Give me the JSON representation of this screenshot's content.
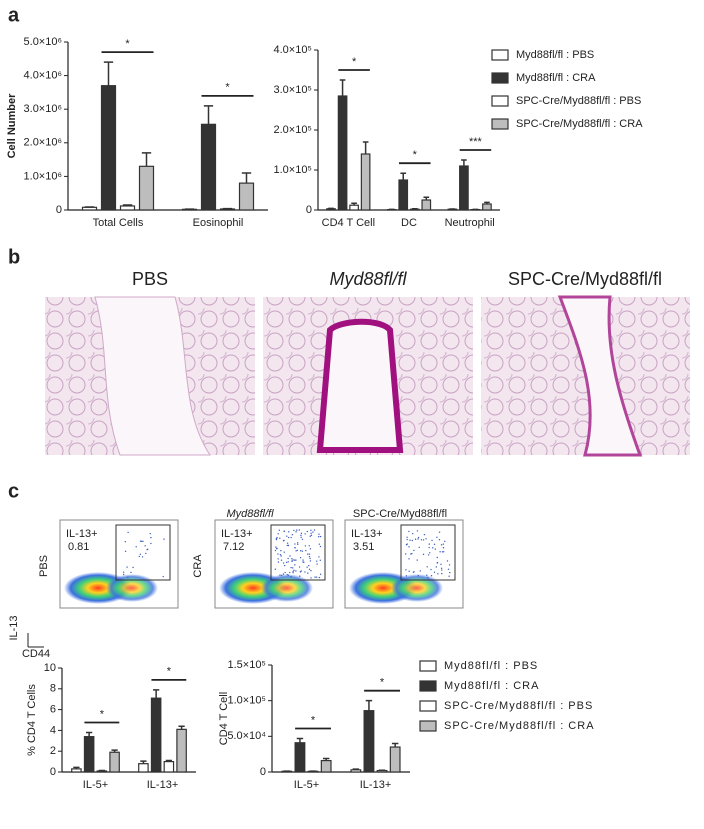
{
  "panel_labels": [
    "a",
    "b",
    "c"
  ],
  "chart_data": [
    {
      "type": "bar",
      "ylabel": "Cell Number",
      "categories": [
        "Total Cells",
        "Eosinophil"
      ],
      "ylim": [
        0,
        5000000
      ],
      "yticks": [
        0,
        {
          "value": 1000000,
          "label": "1.0×10⁶"
        },
        {
          "value": 2000000,
          "label": "2.0×10⁶"
        },
        {
          "value": 3000000,
          "label": "3.0×10⁶"
        },
        {
          "value": 4000000,
          "label": "4.0×10⁶"
        },
        {
          "value": 5000000,
          "label": "5.0×10⁶"
        }
      ],
      "series": [
        {
          "color": "#ffffff",
          "values": [
            80000,
            20000
          ],
          "errors": [
            10000,
            5000
          ]
        },
        {
          "color": "#333333",
          "values": [
            3700000,
            2550000
          ],
          "errors": [
            700000,
            550000
          ]
        },
        {
          "color": "#ffffff",
          "values": [
            120000,
            30000
          ],
          "errors": [
            30000,
            10000
          ]
        },
        {
          "color": "#bdbdbd",
          "values": [
            1300000,
            800000
          ],
          "errors": [
            400000,
            300000
          ]
        }
      ],
      "significance": [
        "*",
        "*"
      ]
    },
    {
      "type": "bar",
      "categories": [
        "CD4 T Cell",
        "DC",
        "Neutrophil"
      ],
      "ylim": [
        0,
        400000
      ],
      "yticks": [
        0,
        {
          "value": 100000,
          "label": "1.0×10⁵"
        },
        {
          "value": 200000,
          "label": "2.0×10⁵"
        },
        {
          "value": 300000,
          "label": "3.0×10⁵"
        },
        {
          "value": 400000,
          "label": "4.0×10⁵"
        }
      ],
      "series": [
        {
          "name": "Myd88fl/fl : PBS",
          "color": "#ffffff",
          "values": [
            3000,
            1000,
            2000
          ],
          "errors": [
            1000,
            500,
            500
          ]
        },
        {
          "name": "Myd88fl/fl : CRA",
          "color": "#333333",
          "values": [
            285000,
            75000,
            110000
          ],
          "errors": [
            40000,
            17000,
            15000
          ]
        },
        {
          "name": "SPC-Cre/Myd88fl/fl : PBS",
          "color": "#ffffff",
          "values": [
            12000,
            2000,
            1000
          ],
          "errors": [
            5000,
            1000,
            500
          ]
        },
        {
          "name": "SPC-Cre/Myd88fl/fl : CRA",
          "color": "#bdbdbd",
          "values": [
            140000,
            25000,
            15000
          ],
          "errors": [
            30000,
            7000,
            4000
          ]
        }
      ],
      "significance": [
        "*",
        "*",
        "***"
      ],
      "legend": "right"
    },
    {
      "type": "bar",
      "ylabel": "% CD4 T Cells",
      "categories": [
        "IL-5+",
        "IL-13+"
      ],
      "ylim": [
        0,
        10
      ],
      "yticks": [
        0,
        2,
        4,
        6,
        8,
        10
      ],
      "series": [
        {
          "color": "#ffffff",
          "values": [
            0.3,
            0.8
          ],
          "errors": [
            0.15,
            0.25
          ]
        },
        {
          "color": "#333333",
          "values": [
            3.4,
            7.1
          ],
          "errors": [
            0.4,
            0.8
          ]
        },
        {
          "color": "#ffffff",
          "values": [
            0.1,
            1.0
          ],
          "errors": [
            0.05,
            0.1
          ]
        },
        {
          "color": "#bdbdbd",
          "values": [
            1.9,
            4.1
          ],
          "errors": [
            0.2,
            0.3
          ]
        }
      ],
      "significance": [
        "*",
        "*"
      ]
    },
    {
      "type": "bar",
      "ylabel": "CD4 T Cell",
      "categories": [
        "IL-5+",
        "IL-13+"
      ],
      "ylim": [
        0,
        150000
      ],
      "yticks": [
        0,
        {
          "value": 50000,
          "label": "5.0×10⁴"
        },
        {
          "value": 100000,
          "label": "1.0×10⁵"
        },
        {
          "value": 150000,
          "label": "1.5×10⁵"
        }
      ],
      "series": [
        {
          "name": "Myd88fl/fl : PBS",
          "color": "#ffffff",
          "values": [
            1000,
            3000
          ],
          "errors": [
            300,
            1000
          ]
        },
        {
          "name": "Myd88fl/fl : CRA",
          "color": "#333333",
          "values": [
            41000,
            86000
          ],
          "errors": [
            6000,
            14000
          ]
        },
        {
          "name": "SPC-Cre/Myd88fl/fl : PBS",
          "color": "#ffffff",
          "values": [
            1000,
            2000
          ],
          "errors": [
            300,
            500
          ]
        },
        {
          "name": "SPC-Cre/Myd88fl/fl : CRA",
          "color": "#bdbdbd",
          "values": [
            16000,
            35000
          ],
          "errors": [
            3000,
            5000
          ]
        }
      ],
      "significance": [
        "*",
        "*"
      ],
      "legend": "right"
    }
  ],
  "histology": {
    "titles": [
      "PBS",
      "Myd88fl/fl",
      "SPC-Cre/Myd88fl/fl"
    ]
  },
  "flow": {
    "column_titles": [
      "Myd88fl/fl",
      "SPC-Cre/Myd88fl/fl"
    ],
    "row_labels": [
      "PBS",
      "CRA"
    ],
    "gate_label": "IL-13+",
    "gate_values": [
      0.81,
      7.12,
      3.51
    ],
    "x_axis": "CD44",
    "y_axis": "IL-13"
  }
}
